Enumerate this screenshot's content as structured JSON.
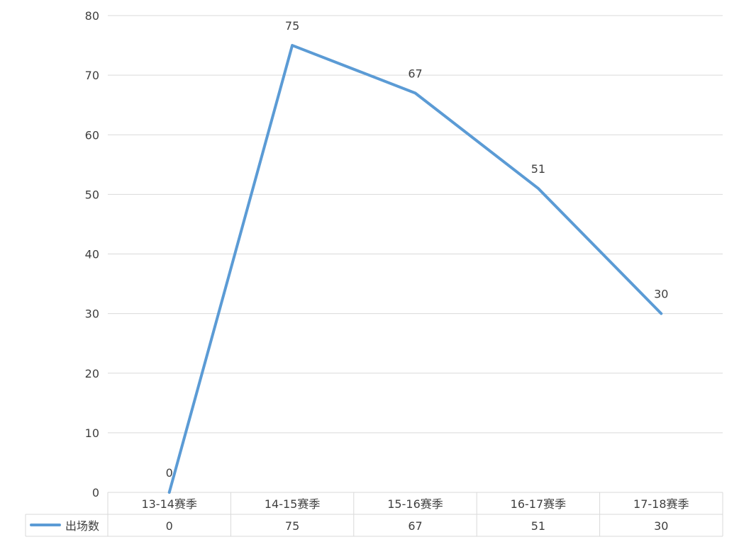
{
  "chart_data": {
    "type": "line",
    "categories": [
      "13-14赛季",
      "14-15赛季",
      "15-16赛季",
      "16-17赛季",
      "17-18赛季"
    ],
    "series": [
      {
        "name": "出场数",
        "values": [
          0,
          75,
          67,
          51,
          30
        ],
        "color": "#5b9bd5"
      }
    ],
    "ylim": [
      0,
      80
    ],
    "yticks": [
      0,
      10,
      20,
      30,
      40,
      50,
      60,
      70,
      80
    ],
    "grid": true,
    "legend": "bottom-left in data table",
    "data_table": true,
    "title": "",
    "xlabel": "",
    "ylabel": ""
  }
}
